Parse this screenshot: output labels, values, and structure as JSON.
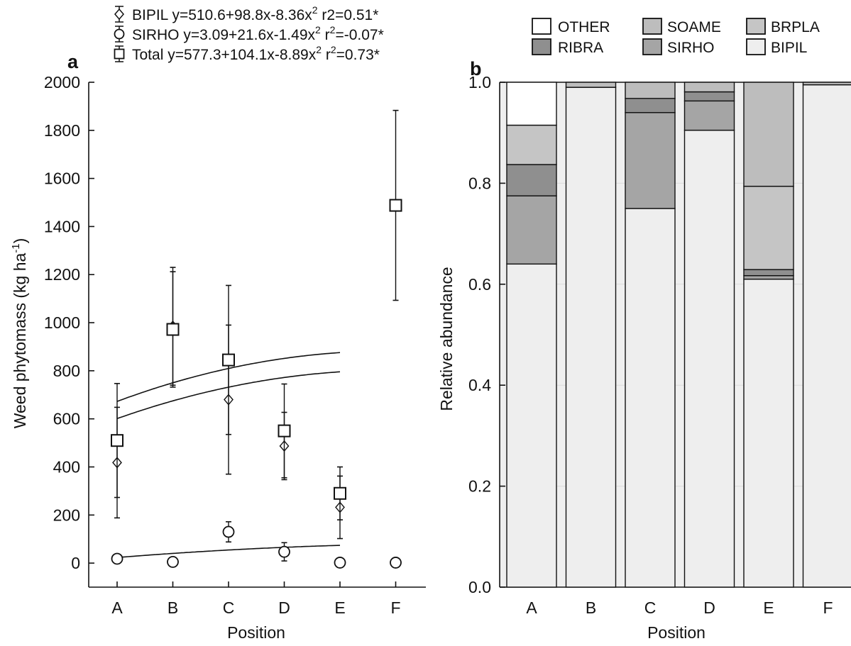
{
  "chart_data": [
    {
      "panel": "a",
      "type": "scatter",
      "xlabel": "Position",
      "ylabel_main": "Weed phytomass (kg ha",
      "ylabel_sup": "-1",
      "ylabel_tail": ")",
      "categories": [
        "A",
        "B",
        "C",
        "D",
        "E",
        "F"
      ],
      "ylim": [
        -100,
        2000
      ],
      "yticks": [
        0,
        200,
        400,
        600,
        800,
        1000,
        1200,
        1400,
        1600,
        1800,
        2000
      ],
      "legend": [
        {
          "name": "BIPIL",
          "marker": "diamond",
          "eq_main": "y=510.6+98.8x-8.36x",
          "eq_sup": "2",
          "r_main": "r2=0.51*",
          "r_sup": ""
        },
        {
          "name": "SIRHO",
          "marker": "circle",
          "eq_main": "y=3.09+21.6x-1.49x",
          "eq_sup": "2",
          "r_main": "r",
          "r_sup": "2",
          "r_tail": "=-0.07*"
        },
        {
          "name": "Total",
          "marker": "square",
          "eq_main": "y=577.3+104.1x-8.89x",
          "eq_sup": "2",
          "r_main": "r",
          "r_sup": "2",
          "r_tail": "=0.73*"
        }
      ],
      "series": [
        {
          "name": "BIPIL",
          "marker": "diamond",
          "x": [
            "A",
            "B",
            "C",
            "D",
            "E"
          ],
          "values": [
            418,
            985,
            680,
            487,
            232
          ],
          "err": [
            230,
            245,
            310,
            140,
            130
          ],
          "fit": [
            510.6,
            98.8,
            -8.36
          ]
        },
        {
          "name": "SIRHO",
          "marker": "circle",
          "x": [
            "A",
            "B",
            "C",
            "D",
            "E",
            "F"
          ],
          "values": [
            18,
            5,
            130,
            47,
            2,
            2
          ],
          "err": [
            0,
            0,
            42,
            38,
            0,
            0
          ],
          "fit": [
            3.09,
            21.6,
            -1.49
          ]
        },
        {
          "name": "Total",
          "marker": "square",
          "x": [
            "A",
            "B",
            "C",
            "D",
            "E",
            "F"
          ],
          "values": [
            510,
            972,
            845,
            550,
            290,
            1488
          ],
          "err": [
            237,
            240,
            310,
            195,
            110,
            395
          ],
          "fit": [
            577.3,
            104.1,
            -8.89
          ]
        }
      ]
    },
    {
      "panel": "b",
      "type": "bar",
      "stacked": true,
      "xlabel": "Position",
      "ylabel": "Relative abundance",
      "categories": [
        "A",
        "B",
        "C",
        "D",
        "E",
        "F"
      ],
      "ylim": [
        0,
        1
      ],
      "yticks": [
        "0.0",
        "0.2",
        "0.4",
        "0.6",
        "0.8",
        "1.0"
      ],
      "legend_order": [
        "OTHER",
        "SOAME",
        "BRPLA",
        "RIBRA",
        "SIRHO",
        "BIPIL"
      ],
      "series": [
        {
          "name": "BIPIL",
          "color": "#eeeeee",
          "values": [
            0.64,
            0.99,
            0.75,
            0.905,
            0.61,
            0.995
          ]
        },
        {
          "name": "SIRHO",
          "color": "#a5a5a5",
          "values": [
            0.135,
            0.0,
            0.19,
            0.058,
            0.007,
            0.0
          ]
        },
        {
          "name": "RIBRA",
          "color": "#8f8f8f",
          "values": [
            0.062,
            0.0,
            0.028,
            0.018,
            0.012,
            0.0
          ]
        },
        {
          "name": "BRPLA",
          "color": "#c5c5c5",
          "values": [
            0.078,
            0.0,
            0.0,
            0.0,
            0.165,
            0.0
          ]
        },
        {
          "name": "SOAME",
          "color": "#bdbdbd",
          "values": [
            0.0,
            0.01,
            0.032,
            0.019,
            0.206,
            0.005
          ]
        },
        {
          "name": "OTHER",
          "color": "#ffffff",
          "values": [
            0.085,
            0.0,
            0.0,
            0.0,
            0.0,
            0.0
          ]
        }
      ]
    }
  ],
  "colors": {
    "ink": "#111111",
    "panel_b_bg": "#efefef"
  }
}
